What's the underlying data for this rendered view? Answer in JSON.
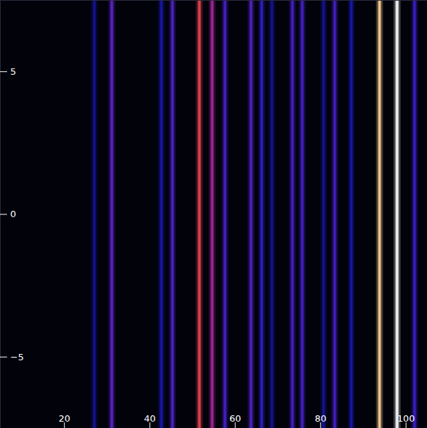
{
  "chart_data": {
    "type": "spectrum",
    "xlim": [
      5,
      105
    ],
    "xticks": [
      20,
      40,
      60,
      80,
      100
    ],
    "ylim": [
      -7.5,
      7.5
    ],
    "yticks": [
      -5,
      0,
      5
    ],
    "clim": [
      0,
      1
    ],
    "lines": [
      {
        "x": 27.0,
        "intensity": 0.12
      },
      {
        "x": 31.1,
        "intensity": 0.28
      },
      {
        "x": 42.7,
        "intensity": 0.14
      },
      {
        "x": 45.3,
        "intensity": 0.26
      },
      {
        "x": 51.6,
        "intensity": 0.55
      },
      {
        "x": 54.6,
        "intensity": 0.4
      },
      {
        "x": 57.6,
        "intensity": 0.24
      },
      {
        "x": 63.7,
        "intensity": 0.26
      },
      {
        "x": 66.2,
        "intensity": 0.2
      },
      {
        "x": 68.6,
        "intensity": 0.12
      },
      {
        "x": 73.4,
        "intensity": 0.24
      },
      {
        "x": 75.7,
        "intensity": 0.24
      },
      {
        "x": 80.7,
        "intensity": 0.12
      },
      {
        "x": 83.3,
        "intensity": 0.24
      },
      {
        "x": 87.2,
        "intensity": 0.14
      },
      {
        "x": 93.8,
        "intensity": 0.8
      },
      {
        "x": 97.9,
        "intensity": 1.0
      },
      {
        "x": 102.0,
        "intensity": 0.22
      }
    ]
  }
}
